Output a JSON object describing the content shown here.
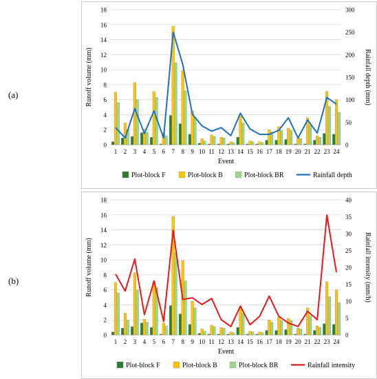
{
  "chart_data": [
    {
      "panel_label": "(a)",
      "type": "bar+line",
      "xlabel": "Event",
      "ylabel": "Runoff volume (mm)",
      "y2label": "Rainfall depth (mm)",
      "categories": [
        "1",
        "2",
        "3",
        "4",
        "5",
        "6",
        "7",
        "8",
        "9",
        "10",
        "11",
        "12",
        "13",
        "14",
        "15",
        "16",
        "17",
        "18",
        "19",
        "20",
        "21",
        "22",
        "23",
        "24"
      ],
      "ylim": [
        0,
        18
      ],
      "yticks": [
        "0",
        "2",
        "4",
        "6",
        "8",
        "10",
        "12",
        "14",
        "16",
        "18"
      ],
      "y2lim": [
        0,
        300
      ],
      "y2ticks": [
        "0",
        "50",
        "100",
        "150",
        "200",
        "250",
        "300"
      ],
      "series": [
        {
          "name": "Plot-block F",
          "kind": "bar",
          "color": "#2e7d32",
          "axis": "left",
          "values": [
            0.4,
            0.9,
            1.1,
            1.6,
            1.0,
            0.1,
            3.9,
            2.8,
            1.4,
            0.2,
            0.1,
            0.1,
            0.1,
            1.0,
            0.1,
            0.1,
            0.6,
            0.6,
            0.7,
            0.1,
            0.1,
            0.6,
            1.5,
            1.4
          ]
        },
        {
          "name": "Plot-block B",
          "kind": "bar",
          "color": "#f9c416",
          "axis": "left",
          "values": [
            7.0,
            2.9,
            8.3,
            2.1,
            7.1,
            1.6,
            15.8,
            9.9,
            4.5,
            0.8,
            1.3,
            1.0,
            0.4,
            3.8,
            0.5,
            0.4,
            2.0,
            2.4,
            2.2,
            0.9,
            3.6,
            1.2,
            7.1,
            6.0
          ]
        },
        {
          "name": "Plot-block BR",
          "kind": "bar",
          "color": "#9ed58c",
          "axis": "left",
          "values": [
            5.6,
            2.0,
            6.0,
            1.7,
            6.3,
            1.2,
            10.9,
            7.2,
            3.6,
            0.5,
            1.1,
            0.9,
            0.3,
            2.9,
            0.4,
            0.3,
            1.7,
            1.9,
            1.9,
            0.8,
            2.6,
            1.0,
            5.1,
            4.3
          ]
        },
        {
          "name": "Rainfall depth",
          "kind": "line",
          "color": "#1f6fc0",
          "axis": "right",
          "values": [
            38,
            15,
            80,
            25,
            75,
            15,
            250,
            178,
            68,
            42,
            30,
            38,
            20,
            70,
            35,
            23,
            23,
            32,
            60,
            15,
            55,
            26,
            105,
            90
          ]
        }
      ],
      "legend_position": "bottom"
    },
    {
      "panel_label": "(b)",
      "type": "bar+line",
      "xlabel": "Event",
      "ylabel": "Runoff volume (mm)",
      "y2label": "Rainfall intensity (mm/h)",
      "categories": [
        "1",
        "2",
        "3",
        "4",
        "5",
        "6",
        "7",
        "8",
        "9",
        "10",
        "11",
        "12",
        "13",
        "14",
        "15",
        "16",
        "17",
        "18",
        "19",
        "20",
        "21",
        "22",
        "23",
        "24"
      ],
      "ylim": [
        0,
        18
      ],
      "yticks": [
        "0",
        "2",
        "4",
        "6",
        "8",
        "10",
        "12",
        "14",
        "16",
        "18"
      ],
      "y2lim": [
        0,
        40
      ],
      "y2ticks": [
        "0",
        "5",
        "10",
        "15",
        "20",
        "25",
        "30",
        "35",
        "40"
      ],
      "series": [
        {
          "name": "Plot-block F",
          "kind": "bar",
          "color": "#2e7d32",
          "axis": "left",
          "values": [
            0.4,
            0.9,
            1.1,
            1.6,
            1.0,
            0.1,
            3.9,
            2.8,
            1.4,
            0.2,
            0.1,
            0.1,
            0.1,
            1.0,
            0.1,
            0.1,
            0.6,
            0.6,
            0.7,
            0.1,
            0.1,
            0.6,
            1.5,
            1.4
          ]
        },
        {
          "name": "Plot-block B",
          "kind": "bar",
          "color": "#f9c416",
          "axis": "left",
          "values": [
            7.0,
            2.9,
            8.3,
            2.1,
            7.1,
            1.6,
            15.8,
            9.9,
            4.5,
            0.8,
            1.3,
            1.0,
            0.4,
            3.8,
            0.5,
            0.4,
            2.0,
            2.4,
            2.2,
            0.9,
            3.6,
            1.2,
            7.1,
            6.0
          ]
        },
        {
          "name": "Plot-block BR",
          "kind": "bar",
          "color": "#9ed58c",
          "axis": "left",
          "values": [
            5.6,
            2.0,
            6.0,
            1.7,
            6.3,
            1.2,
            10.9,
            7.2,
            3.6,
            0.5,
            1.1,
            0.9,
            0.3,
            2.9,
            0.4,
            0.3,
            1.7,
            1.9,
            1.9,
            0.8,
            2.6,
            1.0,
            5.1,
            4.3
          ]
        },
        {
          "name": "Rainfall intensity",
          "kind": "line",
          "color": "#e31a1c",
          "axis": "right",
          "values": [
            18,
            13,
            22.5,
            6,
            16,
            4,
            31,
            10.5,
            11,
            9,
            10.8,
            4.5,
            2.5,
            8.5,
            3,
            5.5,
            11.5,
            5.5,
            3.5,
            2.5,
            7,
            4.5,
            35.5,
            18.5
          ]
        }
      ],
      "legend_position": "bottom"
    }
  ]
}
